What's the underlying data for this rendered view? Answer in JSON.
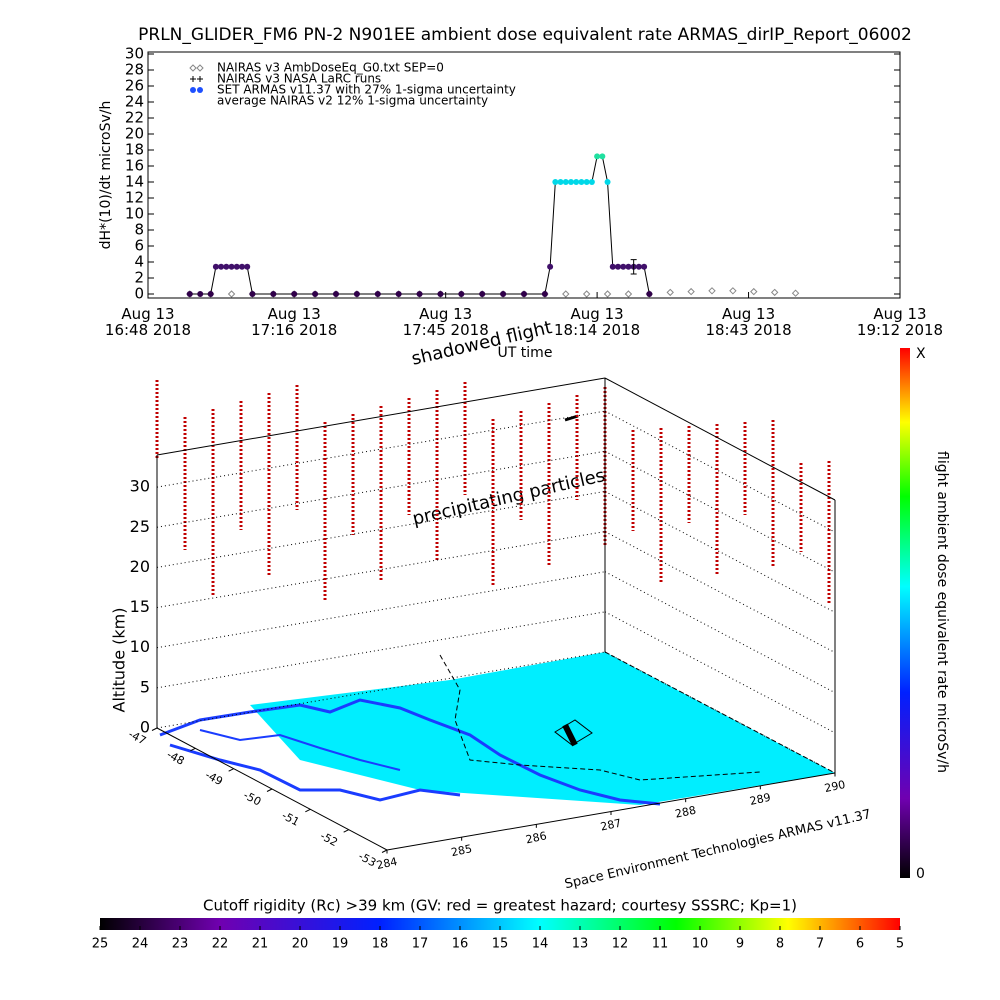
{
  "chart_data": {
    "type": "line",
    "title": "PRLN_GLIDER_FM6 PN-2 N901EE ambient dose equivalent rate ARMAS_dirIP_Report_06002",
    "ylabel": "dH*(10)/dt microSv/h",
    "xlabel": "UT time",
    "xlim": [
      "16:48",
      "19:12"
    ],
    "xticks": [
      {
        "value": "16:48",
        "label": "Aug 13\n16:48 2018"
      },
      {
        "value": "17:16",
        "label": "Aug 13\n17:16 2018"
      },
      {
        "value": "17:45",
        "label": "Aug 13\n17:45 2018"
      },
      {
        "value": "18:14",
        "label": "Aug 13\n18:14 2018"
      },
      {
        "value": "18:43",
        "label": "Aug 13\n18:43 2018"
      },
      {
        "value": "19:12",
        "label": "Aug 13\n19:12 2018"
      }
    ],
    "ylim": [
      -0.5,
      30.25
    ],
    "yticks": [
      0,
      2,
      4,
      6,
      8,
      10,
      12,
      14,
      16,
      18,
      20,
      22,
      24,
      26,
      28,
      30
    ],
    "series": [
      {
        "name": "NAIRAS v3 AmbDoseEq_G0.txt SEP=0",
        "marker": "diamond",
        "color": "#888888",
        "x": [
          "16:56",
          "17:00",
          "17:04",
          "17:08",
          "17:12",
          "17:16",
          "17:20",
          "17:24",
          "17:28",
          "17:32",
          "17:36",
          "17:40",
          "17:44",
          "17:48",
          "17:52",
          "17:56",
          "18:00",
          "18:04",
          "18:08",
          "18:12",
          "18:16",
          "18:20",
          "18:24",
          "18:28",
          "18:32",
          "18:36",
          "18:40",
          "18:44",
          "18:48",
          "18:52"
        ],
        "values": [
          0,
          0,
          0,
          0,
          0,
          0,
          0,
          0,
          0,
          0,
          0,
          0,
          0,
          0,
          0,
          0,
          0,
          0,
          0,
          0,
          0,
          0,
          0,
          0.2,
          0.3,
          0.4,
          0.4,
          0.3,
          0.2,
          0.1
        ]
      },
      {
        "name": "NAIRAS v3 NASA LaRC runs",
        "marker": "plus",
        "color": "#000000",
        "x": [],
        "values": []
      },
      {
        "name": "SET ARMAS v11.37 with 27% 1-sigma uncertainty",
        "marker": "dot",
        "color": "#1e50ff",
        "line_color": "#000000",
        "x": [
          "16:56",
          "16:58",
          "17:00",
          "17:01",
          "17:02",
          "17:03",
          "17:04",
          "17:05",
          "17:06",
          "17:07",
          "17:08",
          "17:12",
          "17:16",
          "17:20",
          "17:24",
          "17:28",
          "17:32",
          "17:36",
          "17:40",
          "17:44",
          "17:48",
          "17:52",
          "17:56",
          "18:00",
          "18:04",
          "18:05",
          "18:06",
          "18:07",
          "18:08",
          "18:09",
          "18:10",
          "18:11",
          "18:12",
          "18:13",
          "18:14",
          "18:15",
          "18:16",
          "18:17",
          "18:18",
          "18:19",
          "18:20",
          "18:21",
          "18:22",
          "18:23",
          "18:24"
        ],
        "values": [
          0,
          0,
          0,
          3.4,
          3.4,
          3.4,
          3.4,
          3.4,
          3.4,
          3.4,
          0,
          0,
          0,
          0,
          0,
          0,
          0,
          0,
          0,
          0,
          0,
          0,
          0,
          0,
          0,
          3.4,
          14,
          14,
          14,
          14,
          14,
          14,
          14,
          14,
          17.2,
          17.2,
          14,
          3.4,
          3.4,
          3.4,
          3.4,
          3.4,
          3.4,
          3.4,
          0
        ],
        "colors": [
          "#30004a",
          "#30004a",
          "#30004a",
          "#40106a",
          "#40106a",
          "#40106a",
          "#40106a",
          "#40106a",
          "#40106a",
          "#40106a",
          "#30004a",
          "#30004a",
          "#30004a",
          "#30004a",
          "#30004a",
          "#30004a",
          "#30004a",
          "#30004a",
          "#30004a",
          "#30004a",
          "#30004a",
          "#30004a",
          "#30004a",
          "#30004a",
          "#30004a",
          "#40106a",
          "#00d8e8",
          "#00d8e8",
          "#00d8e8",
          "#00d8e8",
          "#00d8e8",
          "#00d8e8",
          "#00d8e8",
          "#00d8e8",
          "#20e0a0",
          "#20e0a0",
          "#00d8e8",
          "#40106a",
          "#40106a",
          "#40106a",
          "#40106a",
          "#40106a",
          "#40106a",
          "#40106a",
          "#30004a"
        ]
      },
      {
        "name": "average NAIRAS v2 12% 1-sigma uncertainty",
        "marker": "errorbar",
        "color": "#000000",
        "x": [
          "18:21"
        ],
        "values": [
          3.4
        ],
        "errors": [
          0.9
        ]
      }
    ]
  },
  "plot3d": {
    "annotations": [
      "shadowed flight",
      "precipitating particles"
    ],
    "altitude_axis": {
      "label": "Altitude (km)",
      "lim": [
        0,
        34
      ],
      "ticks": [
        0,
        5,
        10,
        15,
        20,
        25,
        30
      ]
    },
    "latitude_axis": {
      "lim": [
        -47,
        -53
      ],
      "ticks": [
        -47,
        -48,
        -49,
        -50,
        -51,
        -52,
        -53
      ]
    },
    "longitude_axis": {
      "lim": [
        284,
        290
      ],
      "ticks": [
        284,
        285,
        286,
        287,
        288,
        289,
        290
      ]
    },
    "credit": "Space Environment Technologies ARMAS v11.37"
  },
  "dose_colorbar": {
    "label": "flight ambient dose equivalent rate microSv/h",
    "top_label": "X",
    "bottom_label": "0"
  },
  "rigidity_colorbar": {
    "title": "Cutoff rigidity (Rc) >39 km (GV: red = greatest hazard; courtesy SSSRC; Kp=1)",
    "lim": [
      25,
      5
    ],
    "ticks": [
      25,
      24,
      23,
      22,
      21,
      20,
      19,
      18,
      17,
      16,
      15,
      14,
      13,
      12,
      11,
      10,
      9,
      8,
      7,
      6,
      5
    ]
  }
}
